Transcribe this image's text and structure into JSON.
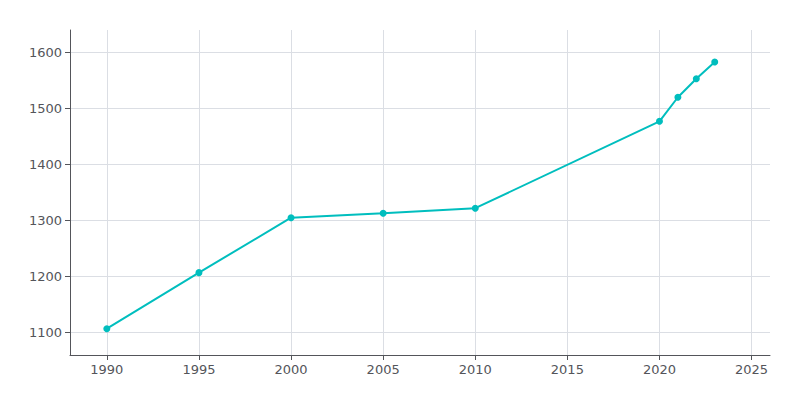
{
  "chart_data": {
    "type": "line",
    "x": [
      1990,
      1995,
      2000,
      2005,
      2010,
      2020,
      2021,
      2022,
      2023
    ],
    "values": [
      1107,
      1207,
      1305,
      1313,
      1322,
      1477,
      1520,
      1553,
      1583
    ],
    "color": "#00BEBE",
    "marker": "circle",
    "xlim": [
      1988,
      2026
    ],
    "ylim": [
      1060,
      1640
    ],
    "xticks": [
      1990,
      1995,
      2000,
      2005,
      2010,
      2015,
      2020,
      2025
    ],
    "yticks": [
      1100,
      1200,
      1300,
      1400,
      1500,
      1600
    ],
    "grid": true
  }
}
